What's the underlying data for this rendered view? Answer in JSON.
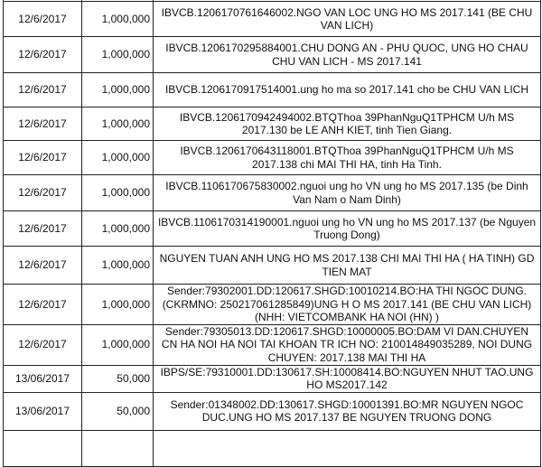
{
  "rows": [
    {
      "date": "",
      "amount": "",
      "desc": ""
    },
    {
      "date": "12/6/2017",
      "amount": "1,000,000",
      "desc": "IBVCB.1206170761646002.NGO VAN LOC UNG HO MS 2017.141 (BE CHU VAN LICH)"
    },
    {
      "date": "12/6/2017",
      "amount": "1,000,000",
      "desc": "IBVCB.1206170295884001.CHU DONG AN - PHU QUOC, UNG HO CHAU CHU VAN LICH - MS 2017.141"
    },
    {
      "date": "12/6/2017",
      "amount": "1,000,000",
      "desc": "IBVCB.1206170917514001.ung ho ma so 2017.141 cho be CHU VAN LICH"
    },
    {
      "date": "12/6/2017",
      "amount": "1,000,000",
      "desc": "IBVCB.1206170942494002.BTQThoa 39PhanNguQ1TPHCM U/h MS 2017.130 be LE ANH KIET, tinh Tien Giang."
    },
    {
      "date": "12/6/2017",
      "amount": "1,000,000",
      "desc": "IBVCB.1206170643118001.BTQThoa 39PhanNguQ1TPHCM U/h MS 2017.138 chi MAI THI HA, tinh Ha Tinh."
    },
    {
      "date": "12/6/2017",
      "amount": "1,000,000",
      "desc": "IBVCB.1106170675830002.nguoi ung ho VN ung ho MS 2017.135 (be Dinh Van Nam o Nam Dinh)"
    },
    {
      "date": "12/6/2017",
      "amount": "1,000,000",
      "desc": "IBVCB.1106170314190001.nguoi ung ho VN ung ho MS 2017.137 (be Nguyen Truong Dong)"
    },
    {
      "date": "12/6/2017",
      "amount": "1,000,000",
      "desc": "NGUYEN TUAN ANH UNG HO MS 2017.138 CHI MAI THI HA ( HA TINH) GD TIEN MAT"
    },
    {
      "date": "12/6/2017",
      "amount": "1,000,000",
      "desc": "Sender:79302001.DD:120617.SHGD:10010214.BO:HA THI NGOC DUNG.(CKRMNO: 250217061285849)UNG H O MS 2017.141 (BE CHU VAN LICH) (NHH: VIETCOMBANK HA NOI (HN) )"
    },
    {
      "date": "12/6/2017",
      "amount": "1,000,000",
      "desc": "Sender:79305013.DD:120617.SHGD:10000005.BO:DAM VI DAN.CHUYEN CN HA NOI HA NOI TAI KHOAN TR ICH NO: 210014849035289, NOI DUNG CHUYEN: 2017.138 MAI THI HA"
    },
    {
      "date": "13/06/2017",
      "amount": "50,000",
      "desc": "IBPS/SE:79310001.DD:130617.SH:10008414.BO:NGUYEN NHUT TAO.UNG HO MS2017.142"
    },
    {
      "date": "13/06/2017",
      "amount": "50,000",
      "desc": "Sender:01348002.DD:130617.SHGD:10001391.BO:MR NGUYEN NGOC DUC.UNG HO MS 2017.137 BE NGUYEN TRUONG DONG"
    },
    {
      "date": "",
      "amount": "",
      "desc": ""
    }
  ]
}
